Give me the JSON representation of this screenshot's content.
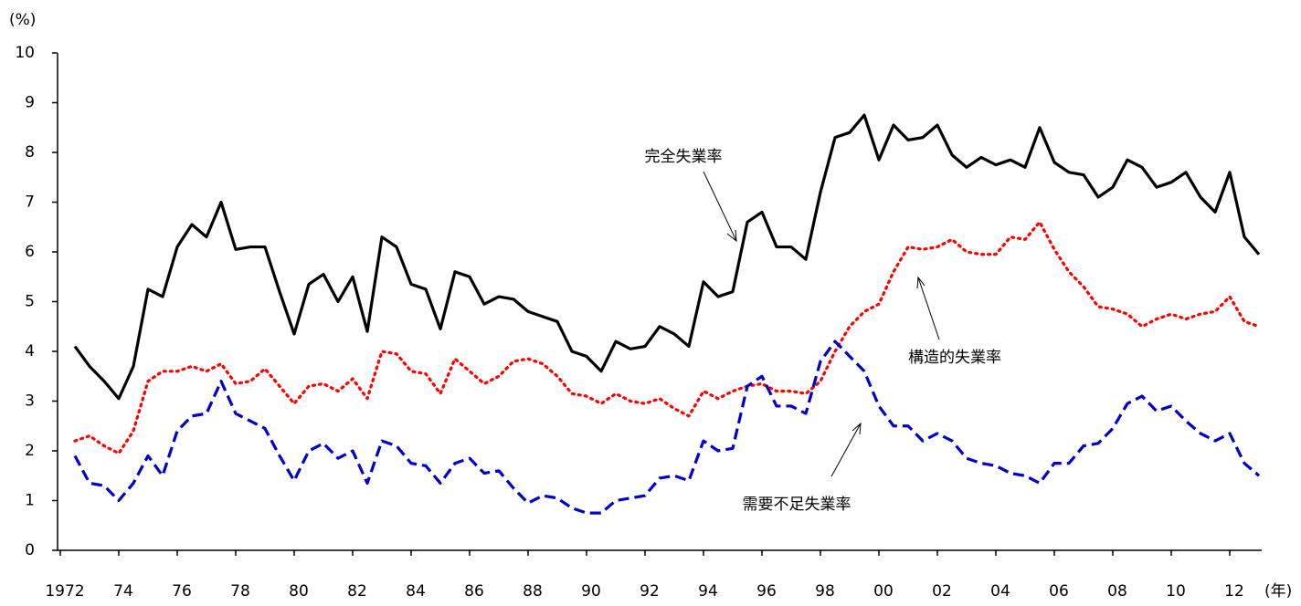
{
  "chart_data": {
    "type": "line",
    "y_unit": "(%)",
    "x_unit": "(年)",
    "xlim": [
      1972,
      2013.1
    ],
    "ylim": [
      0,
      10
    ],
    "yticks": [
      0,
      1,
      2,
      3,
      4,
      5,
      6,
      7,
      8,
      9,
      10
    ],
    "xticks": [
      1972,
      {
        "value": 1974,
        "label": "74"
      },
      {
        "value": 1976,
        "label": "76"
      },
      {
        "value": 1978,
        "label": "78"
      },
      {
        "value": 1980,
        "label": "80"
      },
      {
        "value": 1982,
        "label": "82"
      },
      {
        "value": 1984,
        "label": "84"
      },
      {
        "value": 1986,
        "label": "86"
      },
      {
        "value": 1988,
        "label": "88"
      },
      {
        "value": 1990,
        "label": "90"
      },
      {
        "value": 1992,
        "label": "92"
      },
      {
        "value": 1994,
        "label": "94"
      },
      {
        "value": 1996,
        "label": "96"
      },
      {
        "value": 1998,
        "label": "98"
      },
      {
        "value": 2000,
        "label": "00"
      },
      {
        "value": 2002,
        "label": "02"
      },
      {
        "value": 2004,
        "label": "04"
      },
      {
        "value": 2006,
        "label": "06"
      },
      {
        "value": 2008,
        "label": "08"
      },
      {
        "value": 2010,
        "label": "10"
      },
      {
        "value": 2012,
        "label": "12"
      }
    ],
    "x": [
      1972.5,
      1973,
      1973.5,
      1974,
      1974.5,
      1975,
      1975.5,
      1976,
      1976.5,
      1977,
      1977.5,
      1978,
      1978.5,
      1979,
      1979.5,
      1980,
      1980.5,
      1981,
      1981.5,
      1982,
      1982.5,
      1983,
      1983.5,
      1984,
      1984.5,
      1985,
      1985.5,
      1986,
      1986.5,
      1987,
      1987.5,
      1988,
      1988.5,
      1989,
      1989.5,
      1990,
      1990.5,
      1991,
      1991.5,
      1992,
      1992.5,
      1993,
      1993.5,
      1994,
      1994.5,
      1995,
      1995.5,
      1996,
      1996.5,
      1997,
      1997.5,
      1998,
      1998.5,
      1999,
      1999.5,
      2000,
      2000.5,
      2001,
      2001.5,
      2002,
      2002.5,
      2003,
      2003.5,
      2004,
      2004.5,
      2005,
      2005.5,
      2006,
      2006.5,
      2007,
      2007.5,
      2008,
      2008.5,
      2009,
      2009.5,
      2010,
      2010.5,
      2011,
      2011.5,
      2012,
      2012.5,
      2013
    ],
    "series": [
      {
        "name": "完全失業率",
        "color": "#000000",
        "dash": "none",
        "values": [
          4.1,
          3.7,
          3.4,
          3.05,
          3.7,
          5.25,
          5.1,
          6.1,
          6.55,
          6.3,
          7.0,
          6.05,
          6.1,
          6.1,
          5.2,
          4.35,
          5.35,
          5.55,
          5.0,
          5.5,
          4.4,
          6.3,
          6.1,
          5.35,
          5.25,
          4.45,
          5.6,
          5.5,
          4.95,
          5.1,
          5.05,
          4.8,
          4.7,
          4.6,
          4.0,
          3.9,
          3.6,
          4.2,
          4.05,
          4.1,
          4.5,
          4.35,
          4.1,
          5.4,
          5.1,
          5.2,
          6.6,
          6.8,
          6.1,
          6.1,
          5.85,
          7.2,
          8.3,
          8.4,
          8.75,
          7.85,
          8.55,
          8.25,
          8.3,
          8.55,
          7.95,
          7.7,
          7.9,
          7.75,
          7.85,
          7.7,
          8.5,
          7.8,
          7.6,
          7.55,
          7.1,
          7.3,
          7.85,
          7.7,
          7.3,
          7.4,
          7.6,
          7.1,
          6.8,
          7.6,
          6.3,
          5.95
        ]
      },
      {
        "name": "構造的失業率",
        "color": "#ff0000",
        "dash": "2 5",
        "values": [
          2.2,
          2.3,
          2.1,
          1.95,
          2.4,
          3.4,
          3.6,
          3.6,
          3.7,
          3.6,
          3.75,
          3.35,
          3.4,
          3.65,
          3.3,
          2.95,
          3.3,
          3.35,
          3.2,
          3.45,
          3.05,
          4.0,
          3.95,
          3.6,
          3.55,
          3.15,
          3.85,
          3.6,
          3.35,
          3.5,
          3.8,
          3.85,
          3.75,
          3.5,
          3.15,
          3.1,
          2.95,
          3.15,
          3.0,
          2.95,
          3.05,
          2.85,
          2.7,
          3.2,
          3.05,
          3.2,
          3.3,
          3.35,
          3.2,
          3.2,
          3.15,
          3.4,
          4.0,
          4.5,
          4.8,
          4.95,
          5.6,
          6.1,
          6.05,
          6.1,
          6.25,
          6.0,
          5.95,
          5.95,
          6.3,
          6.25,
          6.6,
          6.05,
          5.6,
          5.3,
          4.9,
          4.85,
          4.75,
          4.5,
          4.65,
          4.75,
          4.65,
          4.75,
          4.8,
          5.1,
          4.6,
          4.5
        ]
      },
      {
        "name": "需要不足失業率",
        "color": "#0000cc",
        "dash": "12 6",
        "values": [
          1.9,
          1.35,
          1.3,
          1.0,
          1.35,
          1.9,
          1.5,
          2.4,
          2.7,
          2.75,
          3.4,
          2.75,
          2.6,
          2.45,
          1.9,
          1.4,
          2.0,
          2.15,
          1.85,
          2.0,
          1.35,
          2.2,
          2.1,
          1.75,
          1.7,
          1.35,
          1.75,
          1.85,
          1.55,
          1.6,
          1.25,
          0.95,
          1.1,
          1.05,
          0.85,
          0.75,
          0.75,
          1.0,
          1.05,
          1.1,
          1.45,
          1.5,
          1.4,
          2.2,
          2.0,
          2.05,
          3.3,
          3.5,
          2.9,
          2.9,
          2.75,
          3.8,
          4.2,
          3.9,
          3.6,
          2.9,
          2.5,
          2.5,
          2.2,
          2.35,
          2.2,
          1.85,
          1.75,
          1.7,
          1.55,
          1.5,
          1.35,
          1.75,
          1.75,
          2.1,
          2.15,
          2.45,
          2.95,
          3.1,
          2.8,
          2.9,
          2.6,
          2.35,
          2.2,
          2.35,
          1.75,
          1.5
        ]
      }
    ]
  }
}
